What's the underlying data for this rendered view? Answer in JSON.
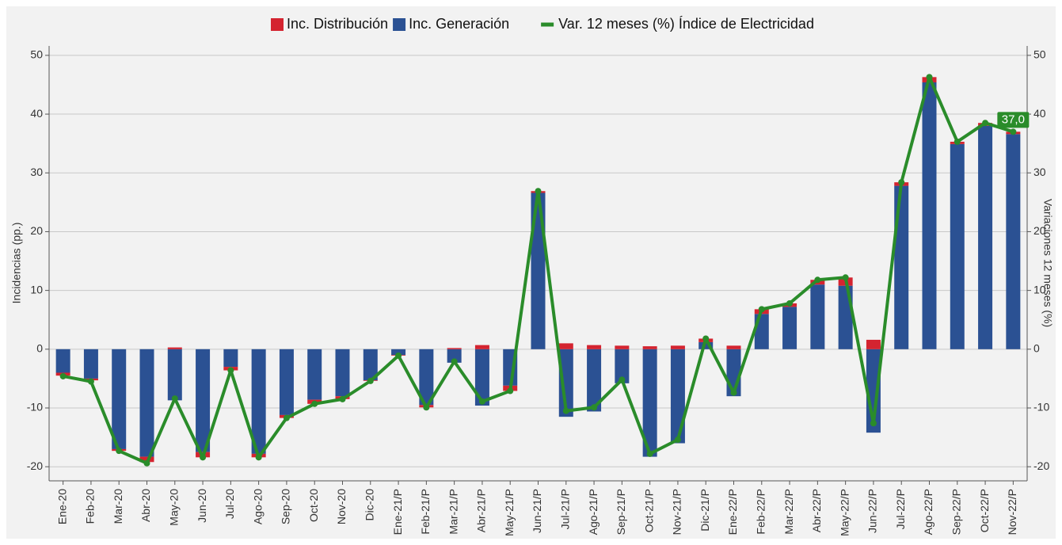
{
  "chart_data": {
    "type": "bar-line",
    "categories": [
      "Ene-20",
      "Feb-20",
      "Mar-20",
      "Abr-20",
      "May-20",
      "Jun-20",
      "Jul-20",
      "Ago-20",
      "Sep-20",
      "Oct-20",
      "Nov-20",
      "Dic-20",
      "Ene-21/P",
      "Feb-21/P",
      "Mar-21/P",
      "Abr-21/P",
      "May-21/P",
      "Jun-21/P",
      "Jul-21/P",
      "Ago-21/P",
      "Sep-21/P",
      "Oct-21/P",
      "Nov-21/P",
      "Dic-21/P",
      "Ene-22/P",
      "Feb-22/P",
      "Mar-22/P",
      "Abr-22/P",
      "May-22/P",
      "Jun-22/P",
      "Jul-22/P",
      "Ago-22/P",
      "Sep-22/P",
      "Oct-22/P",
      "Nov-22/P"
    ],
    "series": [
      {
        "name": "Inc. Distribución",
        "color": "#d42430",
        "type": "bar",
        "values": [
          -0.5,
          -0.3,
          -0.3,
          -0.9,
          0.3,
          -0.9,
          -0.6,
          -0.6,
          -0.5,
          -0.7,
          -0.5,
          -0.1,
          -0.1,
          -0.4,
          0.2,
          0.7,
          -0.9,
          0.3,
          1.0,
          0.7,
          0.6,
          0.5,
          0.6,
          0.6,
          0.6,
          0.8,
          0.6,
          0.8,
          1.4,
          1.6,
          0.6,
          0.9,
          0.4,
          0.5,
          0.4
        ]
      },
      {
        "name": "Inc. Generación",
        "color": "#2b5193",
        "type": "bar",
        "values": [
          -4.0,
          -5.0,
          -17.0,
          -18.3,
          -8.7,
          -17.5,
          -3.0,
          -17.8,
          -11.2,
          -8.6,
          -8.0,
          -5.3,
          -1.0,
          -9.5,
          -2.3,
          -9.6,
          -6.2,
          26.6,
          -11.5,
          -10.6,
          -5.8,
          -18.3,
          -16.0,
          1.2,
          -8.0,
          6.0,
          7.2,
          11.0,
          10.8,
          -14.2,
          27.8,
          45.4,
          34.9,
          38.0,
          36.6
        ]
      },
      {
        "name": "Var. 12 meses (%) Índice de Electricidad",
        "color": "#2a8c2a",
        "type": "line",
        "axis": "y2",
        "values": [
          -4.6,
          -5.5,
          -17.3,
          -19.4,
          -8.4,
          -18.4,
          -3.6,
          -18.4,
          -11.7,
          -9.3,
          -8.5,
          -5.4,
          -1.1,
          -9.9,
          -2.1,
          -8.9,
          -7.1,
          26.9,
          -10.5,
          -9.9,
          -5.2,
          -17.8,
          -15.4,
          1.8,
          -7.4,
          6.8,
          7.8,
          11.8,
          12.2,
          -12.6,
          28.4,
          46.3,
          35.3,
          38.5,
          37.0
        ],
        "value_labels": [
          null,
          null,
          null,
          null,
          null,
          null,
          null,
          null,
          null,
          null,
          null,
          null,
          null,
          null,
          null,
          null,
          null,
          null,
          null,
          null,
          null,
          null,
          null,
          null,
          null,
          null,
          null,
          null,
          null,
          null,
          null,
          null,
          null,
          null,
          "37,0"
        ]
      }
    ],
    "y_label": "Incidencias (pp.)",
    "y2_label": "Variaciones 12 meses (%)",
    "ylim": [
      -22.4,
      51.6
    ],
    "yticks": [
      -20,
      -10,
      0,
      10,
      20,
      30,
      40,
      50
    ],
    "y2lim": [
      -22.4,
      51.6
    ],
    "y2ticks": [
      -20,
      -10,
      0,
      10,
      20,
      30,
      40,
      50
    ],
    "grid": true,
    "legend": "top"
  }
}
